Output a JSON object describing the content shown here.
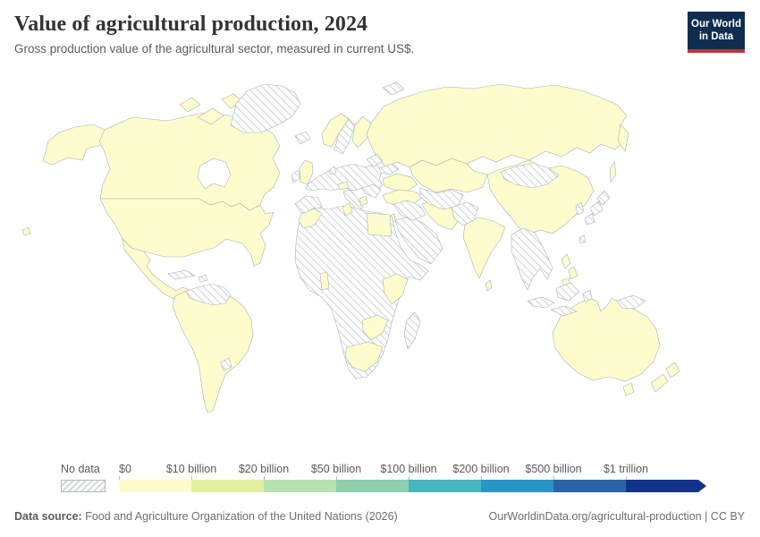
{
  "header": {
    "title": "Value of agricultural production, 2024",
    "subtitle": "Gross production value of the agricultural sector, measured in current US$.",
    "logo": {
      "line1": "Our World",
      "line2": "in Data"
    }
  },
  "legend": {
    "no_data_label": "No data",
    "tick_labels": [
      "$0",
      "$10 billion",
      "$20 billion",
      "$50 billion",
      "$100 billion",
      "$200 billion",
      "$500 billion",
      "$1 trillion"
    ],
    "bin_colors": [
      "#fdfccd",
      "#e1f19f",
      "#b5e2ae",
      "#8ed0ad",
      "#47b4c0",
      "#2a94c8",
      "#2b63a9",
      "#12338b"
    ]
  },
  "footer": {
    "source_label": "Data source:",
    "source_text": " Food and Agriculture Organization of the United Nations (2026)",
    "link_text": "OurWorldinData.org/agricultural-production | CC BY"
  },
  "theme": {
    "logo_navy": "#102d50",
    "logo_red": "#c0353c",
    "band1_fill": "#fdfccd",
    "hatch_line": "#d4d8dc",
    "country_border": "#a9b1b7"
  },
  "chart_data": {
    "type": "choropleth",
    "title": "Value of agricultural production, 2024",
    "subtitle": "Gross production value of the agricultural sector, measured in current US$.",
    "unit": "current US$",
    "legend_bins": [
      "$0",
      "$10 billion",
      "$20 billion",
      "$50 billion",
      "$100 billion",
      "$200 billion",
      "$500 billion",
      "$1 trillion"
    ],
    "bin_colors": [
      "#fdfccd",
      "#e1f19f",
      "#b5e2ae",
      "#8ed0ad",
      "#47b4c0",
      "#2a94c8",
      "#2b63a9",
      "#12338b"
    ],
    "no_data_label": "No data",
    "no_data_style": "light-gray diagonal hatching",
    "map_reading": {
      "only_visible_band": "$0–$10 billion (palest yellow)",
      "first_band_countries_visible": [
        "United States",
        "Canada",
        "Mexico",
        "Brazil",
        "Argentina",
        "Chile",
        "Peru",
        "Colombia",
        "Ecuador",
        "Bolivia",
        "Paraguay",
        "Russia",
        "Kazakhstan",
        "China",
        "India",
        "Sri Lanka",
        "Iran",
        "Turkey",
        "Ukraine",
        "United Kingdom",
        "Norway",
        "Finland",
        "Egypt",
        "Morocco",
        "Tunisia",
        "Ghana",
        "Kenya",
        "Zimbabwe",
        "South Africa",
        "Philippines",
        "Australia",
        "New Zealand"
      ],
      "no_data_regions_visible": [
        "Greenland",
        "Iceland",
        "Ireland",
        "France",
        "Spain",
        "Portugal",
        "Germany",
        "Italy",
        "Sweden",
        "Central/Eastern Europe",
        "most of Africa",
        "Madagascar",
        "Saudi Arabia",
        "Iraq",
        "Central Asia",
        "Mongolia",
        "Japan",
        "South Korea",
        "Mainland Southeast Asia",
        "Indonesia",
        "Papua New Guinea",
        "Venezuela",
        "Guyanas",
        "Uruguay",
        "Cuba"
      ]
    }
  }
}
